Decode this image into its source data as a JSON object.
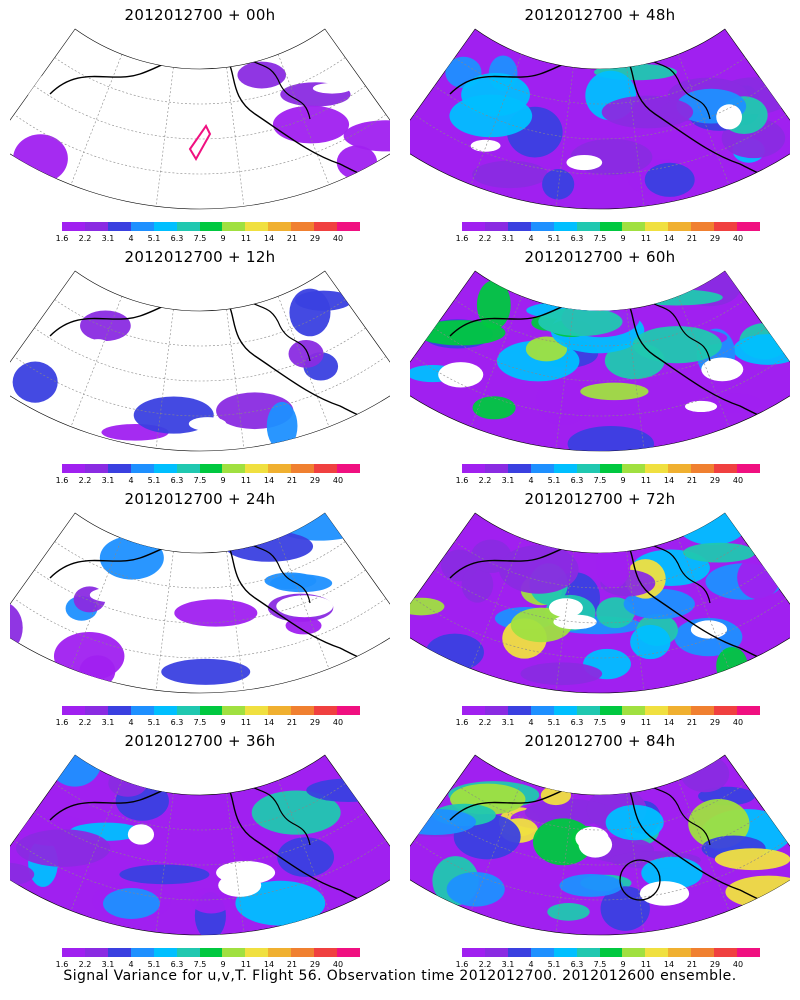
{
  "caption": "Signal Variance for u,v,T. Flight 56. Observation time 2012012700. 2012012600 ensemble.",
  "colorbar": {
    "labels": [
      "1.6",
      "2.2",
      "3.1",
      "4",
      "5.1",
      "6.3",
      "7.5",
      "9",
      "11",
      "14",
      "21",
      "29",
      "40"
    ],
    "colors": [
      "#a020f0",
      "#8a2be2",
      "#3a40e0",
      "#1e90ff",
      "#00bfff",
      "#20c8b0",
      "#00c840",
      "#a0e040",
      "#f0e040",
      "#f0b030",
      "#f08030",
      "#f04040",
      "#f01080"
    ]
  },
  "panels": [
    {
      "title": "2012012700 + 00h",
      "level": 0
    },
    {
      "title": "2012012700 + 48h",
      "level": 4
    },
    {
      "title": "2012012700 + 12h",
      "level": 1
    },
    {
      "title": "2012012700 + 60h",
      "level": 5
    },
    {
      "title": "2012012700 + 24h",
      "level": 2
    },
    {
      "title": "2012012700 + 72h",
      "level": 6
    },
    {
      "title": "2012012700 + 36h",
      "level": 3
    },
    {
      "title": "2012012700 + 84h",
      "level": 7
    }
  ]
}
